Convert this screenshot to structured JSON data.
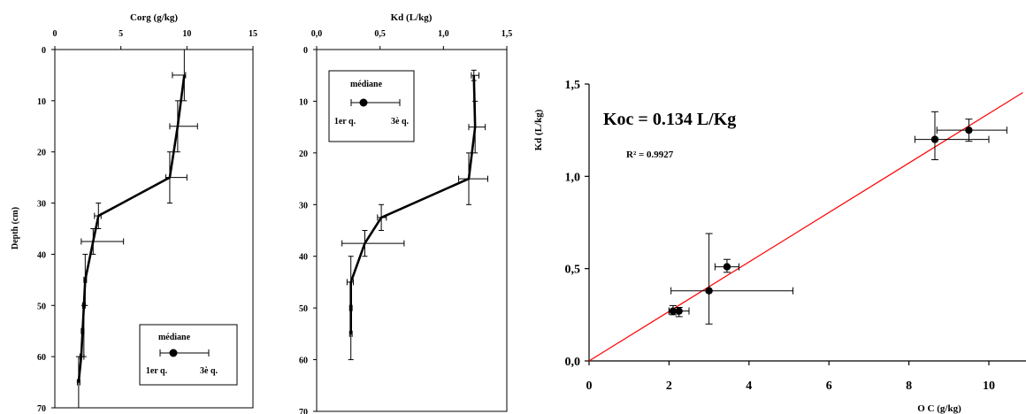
{
  "chart_data": [
    {
      "type": "line",
      "xlabel": "Corg (g/kg)",
      "ylabel": "Depth (cm)",
      "xlim": [
        0,
        15
      ],
      "ylim": [
        0,
        70
      ],
      "x_ticks": [
        "0",
        "5",
        "10",
        "15"
      ],
      "y_ticks": [
        "0",
        "10",
        "20",
        "30",
        "40",
        "50",
        "60",
        "70"
      ],
      "y_inverted": true,
      "series": [
        {
          "points": [
            {
              "depth": 5,
              "x": 9.8,
              "q1": 8.9,
              "q3": 9.9
            },
            {
              "depth": 15,
              "x": 9.3,
              "q1": 8.7,
              "q3": 10.8
            },
            {
              "depth": 25,
              "x": 8.7,
              "q1": 8.4,
              "q3": 10.0
            },
            {
              "depth": 32.5,
              "x": 3.3,
              "q1": 3.0,
              "q3": 3.5
            },
            {
              "depth": 37.5,
              "x": 2.9,
              "q1": 2.0,
              "q3": 5.2
            },
            {
              "depth": 45,
              "x": 2.3,
              "q1": 2.2,
              "q3": 2.4
            },
            {
              "depth": 50,
              "x": 2.2,
              "q1": 2.1,
              "q3": 2.3
            },
            {
              "depth": 55,
              "x": 2.1,
              "q1": 2.0,
              "q3": 2.2
            },
            {
              "depth": 60,
              "x": 2.0,
              "q1": 1.9,
              "q3": 2.2
            },
            {
              "depth": 65,
              "x": 1.8,
              "q1": 1.7,
              "q3": 1.9
            }
          ],
          "vertical_error": [
            {
              "x": 9.8,
              "from": 0,
              "to": 10
            },
            {
              "x": 9.3,
              "from": 10,
              "to": 20
            },
            {
              "x": 8.7,
              "from": 20,
              "to": 30
            },
            {
              "x": 3.3,
              "from": 30,
              "to": 35
            },
            {
              "x": 2.9,
              "from": 35,
              "to": 40
            },
            {
              "x": 2.3,
              "from": 40,
              "to": 50
            },
            {
              "x": 2.2,
              "from": 50,
              "to": 60
            },
            {
              "x": 1.8,
              "from": 60,
              "to": 70
            }
          ]
        }
      ],
      "legend": {
        "median": "médiane",
        "q1": "1er q.",
        "q3": "3è q."
      }
    },
    {
      "type": "line",
      "xlabel": "Kd (L/kg)",
      "ylabel": "",
      "xlim": [
        0,
        1.5
      ],
      "ylim": [
        0,
        70
      ],
      "x_ticks": [
        "0,0",
        "0,5",
        "1,0",
        "1,5"
      ],
      "y_ticks": [
        "0",
        "10",
        "20",
        "30",
        "40",
        "50",
        "60",
        "70"
      ],
      "y_inverted": true,
      "series": [
        {
          "points": [
            {
              "depth": 5,
              "x": 1.24,
              "q1": 1.22,
              "q3": 1.28
            },
            {
              "depth": 15,
              "x": 1.25,
              "q1": 1.2,
              "q3": 1.33
            },
            {
              "depth": 25,
              "x": 1.2,
              "q1": 1.12,
              "q3": 1.35
            },
            {
              "depth": 32.5,
              "x": 0.51,
              "q1": 0.48,
              "q3": 0.55
            },
            {
              "depth": 37.5,
              "x": 0.38,
              "q1": 0.2,
              "q3": 0.69
            },
            {
              "depth": 45,
              "x": 0.27,
              "q1": 0.24,
              "q3": 0.29
            },
            {
              "depth": 50,
              "x": 0.27,
              "q1": 0.26,
              "q3": 0.28
            },
            {
              "depth": 55,
              "x": 0.27,
              "q1": 0.26,
              "q3": 0.28
            }
          ],
          "vertical_error": [
            {
              "x": 1.24,
              "from": 4,
              "to": 6
            },
            {
              "x": 1.25,
              "from": 10,
              "to": 20
            },
            {
              "x": 1.2,
              "from": 20,
              "to": 30
            },
            {
              "x": 0.51,
              "from": 30,
              "to": 35
            },
            {
              "x": 0.38,
              "from": 35,
              "to": 40
            },
            {
              "x": 0.27,
              "from": 40,
              "to": 60
            }
          ]
        }
      ],
      "legend": {
        "median": "médiane",
        "q1": "1er q.",
        "q3": "3è q."
      }
    },
    {
      "type": "scatter",
      "xlabel": "O C (g/kg)",
      "ylabel": "Kd (L/kg)",
      "xlim": [
        0,
        11
      ],
      "ylim": [
        0,
        1.5
      ],
      "x_ticks": [
        "0",
        "2",
        "4",
        "6",
        "8",
        "10"
      ],
      "y_ticks": [
        "0,0",
        "0,5",
        "1,0",
        "1,5"
      ],
      "annotation": "Koc = 0.134 L/Kg",
      "r2_label": "R² = 0.9927",
      "regression": {
        "slope": 0.134,
        "intercept": 0,
        "color": "#ff0000"
      },
      "points": [
        {
          "x": 2.1,
          "y": 0.27,
          "xerr": [
            2.0,
            2.2
          ],
          "yerr": [
            0.25,
            0.3
          ]
        },
        {
          "x": 2.25,
          "y": 0.27,
          "xerr": [
            2.0,
            2.5
          ],
          "yerr": [
            0.24,
            0.29
          ]
        },
        {
          "x": 3.0,
          "y": 0.38,
          "xerr": [
            2.05,
            5.1
          ],
          "yerr": [
            0.2,
            0.69
          ]
        },
        {
          "x": 3.45,
          "y": 0.51,
          "xerr": [
            3.15,
            3.75
          ],
          "yerr": [
            0.48,
            0.55
          ]
        },
        {
          "x": 8.65,
          "y": 1.2,
          "xerr": [
            8.15,
            10.0
          ],
          "yerr": [
            1.09,
            1.35
          ]
        },
        {
          "x": 9.5,
          "y": 1.25,
          "xerr": [
            8.7,
            10.45
          ],
          "yerr": [
            1.19,
            1.31
          ]
        }
      ]
    }
  ]
}
